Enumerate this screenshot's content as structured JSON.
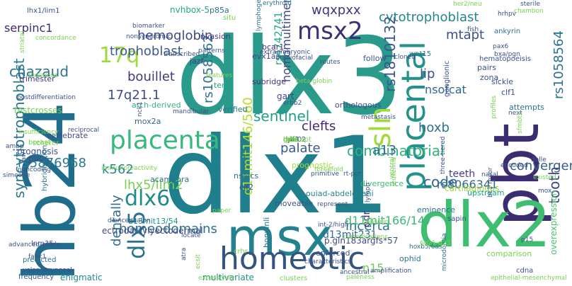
{
  "words": [
    {
      "text": "dlx3",
      "color": "#2a9a8a"
    },
    {
      "text": "dlx1",
      "color": "#1f7f8c"
    },
    {
      "text": "hb24",
      "color": "#1f6c8d"
    },
    {
      "text": "pbt",
      "color": "#3c2d70"
    },
    {
      "text": "dlx2",
      "color": "#3fbd70"
    },
    {
      "text": "msx",
      "color": "#23828d"
    },
    {
      "text": "homeotic",
      "color": "#34537f"
    },
    {
      "text": "placenta",
      "color": "#37b87c"
    },
    {
      "text": "placental",
      "color": "#23928a"
    },
    {
      "text": "msx2",
      "color": "#3a3276"
    },
    {
      "text": "dlx6",
      "color": "#1f8c89"
    },
    {
      "text": "dlx5",
      "color": "#2c728e"
    },
    {
      "text": "17q",
      "color": "#9ed93a"
    },
    {
      "text": "sln",
      "color": "#9fda3a"
    },
    {
      "text": "hemoglobin",
      "color": "#3e4a89"
    },
    {
      "text": "trophoblast",
      "color": "#375a8c"
    },
    {
      "text": "cytotrophoblast",
      "color": "#23888e"
    },
    {
      "text": "wqxpxx",
      "color": "#45347c"
    },
    {
      "text": "serpinc1",
      "color": "#3e2a6f"
    },
    {
      "text": "rs1810132",
      "color": "#3a568b"
    },
    {
      "text": "rs1058564",
      "color": "#2b6f8e"
    },
    {
      "text": "mtapt",
      "color": "#3c4f8a"
    },
    {
      "text": "lip",
      "color": "#3c4f8a"
    },
    {
      "text": "nsofcat",
      "color": "#2a6b8e"
    },
    {
      "text": "chazaud",
      "color": "#2c738e"
    },
    {
      "text": "bouillet",
      "color": "#3f3a7a"
    },
    {
      "text": "17q21.1",
      "color": "#3e4d8a"
    },
    {
      "text": "syncytiotrophoblast",
      "color": "#2a788e"
    },
    {
      "text": "rs5876968",
      "color": "#2a788e"
    },
    {
      "text": "k562",
      "color": "#25848e"
    },
    {
      "text": "lhx5/lim2",
      "color": "#7ad151"
    },
    {
      "text": "dentally",
      "color": "#2f6b8e"
    },
    {
      "text": "homeodomains",
      "color": "#2c6f8e"
    },
    {
      "text": "sentinel",
      "color": "#1fa187"
    },
    {
      "text": "clefts",
      "color": "#482475"
    },
    {
      "text": "palate",
      "color": "#375b8d"
    },
    {
      "text": "combinatorial",
      "color": "#2fb47c"
    },
    {
      "text": "a13",
      "color": "#2f6b8e"
    },
    {
      "text": "hoxb",
      "color": "#2c718e"
    },
    {
      "text": "code",
      "color": "#31688e"
    },
    {
      "text": "tooth",
      "color": "#404588"
    },
    {
      "text": "convergently",
      "color": "#355e8d"
    },
    {
      "text": "incerta",
      "color": "#2d718e"
    },
    {
      "text": "rs8066341",
      "color": "#31678e"
    },
    {
      "text": "teeth",
      "color": "#424086"
    },
    {
      "text": "odr",
      "color": "#472c7a"
    },
    {
      "text": "n15",
      "color": "#6ccd5a"
    },
    {
      "text": "d11mit146/560",
      "color": "#b2dd2d"
    },
    {
      "text": "d11mit166/147",
      "color": "#38b977"
    },
    {
      "text": "d13mit231",
      "color": "#2f6c8e"
    },
    {
      "text": "rs1058562",
      "color": "#2e6e8e"
    },
    {
      "text": "homomultimers",
      "color": "#3e4989"
    },
    {
      "text": "rs4742741",
      "color": "#22a785"
    },
    {
      "text": "nvhbox-5",
      "color": "#22a785"
    },
    {
      "text": "p85a",
      "color": "#2e6f8e"
    },
    {
      "text": "enigmatic",
      "color": "#23888e"
    },
    {
      "text": "multivariate",
      "color": "#21918c"
    },
    {
      "text": "ectrodactylyectodermal",
      "color": "#3e4a89"
    },
    {
      "text": "p.gln183argfs*57",
      "color": "#3e4a89"
    },
    {
      "text": "overexpression",
      "color": "#4ac16d"
    },
    {
      "text": "cartilaginous",
      "color": "#9fda3a"
    },
    {
      "text": "upstream",
      "color": "#1fa187"
    },
    {
      "text": "acampora",
      "color": "#2d708e"
    },
    {
      "text": "d13mit13/54",
      "color": "#1f958b"
    },
    {
      "text": "ouiad-abdelghani",
      "color": "#25848e"
    },
    {
      "text": "prognostic",
      "color": "#a5db36"
    },
    {
      "text": "divergence",
      "color": "#3fbc73"
    },
    {
      "text": "orthologous",
      "color": "#3d4e8a"
    },
    {
      "text": "gart",
      "color": "#404688"
    },
    {
      "text": "subridge",
      "color": "#46327e"
    },
    {
      "text": "bcar1",
      "color": "#46327e"
    },
    {
      "text": "evx1as",
      "color": "#3f4788"
    },
    {
      "text": "jazf",
      "color": "#443a83"
    },
    {
      "text": "invasion",
      "color": "#443983"
    },
    {
      "text": "trimester",
      "color": "#443983"
    },
    {
      "text": "testcrosses",
      "color": "#7ad151"
    },
    {
      "text": "verified",
      "color": "#2a788e"
    },
    {
      "text": "term",
      "color": "#21a585"
    },
    {
      "text": "mox2a",
      "color": "#31688e"
    },
    {
      "text": "arch-derived",
      "color": "#2fb47c"
    },
    {
      "text": "vertebrate",
      "color": "#3e4a89"
    },
    {
      "text": "breast",
      "color": "#7ad151"
    },
    {
      "text": "prognosis",
      "color": "#3b528b"
    },
    {
      "text": "poor",
      "color": "#3b528b"
    },
    {
      "text": "eminence",
      "color": "#2c728e"
    },
    {
      "text": "clf2",
      "color": "#3b528b"
    },
    {
      "text": "nsofcs",
      "color": "#2c728e"
    },
    {
      "text": "moveable",
      "color": "#3b528b"
    },
    {
      "text": "enforced",
      "color": "#3b528b"
    },
    {
      "text": "ophid",
      "color": "#2c728e"
    },
    {
      "text": "comparison",
      "color": "#7ad151"
    },
    {
      "text": "sickle",
      "color": "#3b528b"
    },
    {
      "text": "attempts",
      "color": "#2c728e"
    },
    {
      "text": "clf1",
      "color": "#3b528b"
    },
    {
      "text": "zona",
      "color": "#3b528b"
    },
    {
      "text": "pairs",
      "color": "#3b528b"
    },
    {
      "text": "wnt15",
      "color": "#2c728e"
    },
    {
      "text": "hematopoeisis",
      "color": "#3b528b"
    },
    {
      "text": "ganglionic",
      "color": "#3b528b"
    },
    {
      "text": "ankyrin",
      "color": "#2c728e"
    },
    {
      "text": "follow",
      "color": "#3b528b"
    },
    {
      "text": "situ",
      "color": "#7ad151"
    },
    {
      "text": "scherer",
      "color": "#7ad151"
    },
    {
      "text": "lhx1/lim1",
      "color": "#3b528b"
    },
    {
      "text": "clusters",
      "color": "#7ad151"
    },
    {
      "text": "sapin",
      "color": "#3b528b"
    },
    {
      "text": "bonvinli",
      "color": "#2c728e"
    },
    {
      "text": "crhr",
      "color": "#7ad151"
    },
    {
      "text": "cdna",
      "color": "#3b528b"
    },
    {
      "text": "p15",
      "color": "#3b528b"
    },
    {
      "text": "nasal",
      "color": "#3b528b"
    },
    {
      "text": "hybridization",
      "color": "#2c728e"
    },
    {
      "text": "predicted",
      "color": "#2c728e"
    },
    {
      "text": "lnm35",
      "color": "#3b528b"
    },
    {
      "text": "frequency",
      "color": "#3b528b"
    },
    {
      "text": "velopharyngeal",
      "color": "#3b528b"
    },
    {
      "text": "fank1",
      "color": "#3b528b"
    },
    {
      "text": "ecsit",
      "color": "#7ad151"
    },
    {
      "text": "extensively",
      "color": "#7ad151"
    },
    {
      "text": "ancestral",
      "color": "#3b528b"
    },
    {
      "text": "paleness",
      "color": "#7ad151"
    },
    {
      "text": "epithelial-mesenchymal",
      "color": "#7ad151"
    },
    {
      "text": "amplification",
      "color": "#3b528b"
    },
    {
      "text": "characteristics",
      "color": "#3b528b"
    },
    {
      "text": "microdontia",
      "color": "#2c728e"
    },
    {
      "text": "hoxb5/6as",
      "color": "#2c728e"
    },
    {
      "text": "classifications",
      "color": "#7ad151"
    },
    {
      "text": "int-2/high",
      "color": "#3b528b"
    },
    {
      "text": "represent",
      "color": "#3b528b"
    },
    {
      "text": "capsulin",
      "color": "#7ad151"
    },
    {
      "text": "lymph",
      "color": "#3b528b"
    },
    {
      "text": "metastasis",
      "color": "#3b528b"
    },
    {
      "text": "threefold",
      "color": "#7ad151"
    },
    {
      "text": "primitive",
      "color": "#3b528b"
    },
    {
      "text": "rt-pcr",
      "color": "#3b528b"
    },
    {
      "text": "cloned",
      "color": "#3b528b"
    },
    {
      "text": "features",
      "color": "#7ad151"
    },
    {
      "text": "transcribed",
      "color": "#3b528b"
    },
    {
      "text": "patterns",
      "color": "#3b528b"
    },
    {
      "text": "nonsyndromic",
      "color": "#3b528b"
    },
    {
      "text": "biomarker",
      "color": "#3b528b"
    },
    {
      "text": "erythroid",
      "color": "#2c728e"
    },
    {
      "text": "lymphogenous",
      "color": "#2c728e"
    },
    {
      "text": "extraembryonic",
      "color": "#3b528b"
    },
    {
      "text": "craniofacial",
      "color": "#3b528b"
    },
    {
      "text": "routes",
      "color": "#3b528b"
    },
    {
      "text": "erbb2",
      "color": "#3b528b"
    },
    {
      "text": "mandibular",
      "color": "#3b528b"
    },
    {
      "text": "beta-globin",
      "color": "#7ad151"
    },
    {
      "text": "sterile",
      "color": "#3b528b"
    },
    {
      "text": "chambon",
      "color": "#7ad151"
    },
    {
      "text": "hrhpv",
      "color": "#3b528b"
    },
    {
      "text": "fish",
      "color": "#3b528b"
    },
    {
      "text": "bxa/pgn",
      "color": "#3b528b"
    },
    {
      "text": "pax6",
      "color": "#3b528b"
    },
    {
      "text": "concordance",
      "color": "#7ad151"
    },
    {
      "text": "postdifferentiation",
      "color": "#3b528b"
    },
    {
      "text": "insufficiency",
      "color": "#7ad151"
    },
    {
      "text": "ambp",
      "color": "#3b528b"
    },
    {
      "text": "reciprocal",
      "color": "#3b528b"
    },
    {
      "text": "noncoding",
      "color": "#3b528b"
    },
    {
      "text": "simeone",
      "color": "#3b528b"
    },
    {
      "text": "jaw",
      "color": "#3b528b"
    },
    {
      "text": "advanced-grade",
      "color": "#3b528b"
    },
    {
      "text": "diencephalon",
      "color": "#3b528b"
    },
    {
      "text": "locate",
      "color": "#3b528b"
    },
    {
      "text": "atra",
      "color": "#3b528b"
    },
    {
      "text": "6q21-q23",
      "color": "#7ad151"
    },
    {
      "text": "encoded",
      "color": "#3b528b"
    },
    {
      "text": "existed",
      "color": "#7ad151"
    },
    {
      "text": "bc1 myor",
      "color": "#3b528b"
    },
    {
      "text": "mox",
      "color": "#3b528b"
    },
    {
      "text": "dolle",
      "color": "#3b528b"
    },
    {
      "text": "profiles",
      "color": "#7ad151"
    },
    {
      "text": "next",
      "color": "#3b528b"
    },
    {
      "text": "paper",
      "color": "#7ad151"
    },
    {
      "text": "ventral",
      "color": "#7ad151"
    },
    {
      "text": "leukemia",
      "color": "#7ad151"
    },
    {
      "text": "sfmbt2",
      "color": "#7ad151"
    },
    {
      "text": "thalamus",
      "color": "#7ad151"
    },
    {
      "text": "immunoreactivity",
      "color": "#7ad151"
    },
    {
      "text": "nck1",
      "color": "#3b528b"
    },
    {
      "text": "three-tiered",
      "color": "#3b528b"
    },
    {
      "text": "striatal",
      "color": "#7ad151"
    },
    {
      "text": "her2/neu",
      "color": "#7ad151"
    },
    {
      "text": "mb-02",
      "color": "#3b528b"
    },
    {
      "text": "lsils",
      "color": "#7ad151"
    },
    {
      "text": "rgb1",
      "color": "#7ad151"
    },
    {
      "text": "dpf3",
      "color": "#3b528b"
    },
    {
      "text": "gets",
      "color": "#7ad151"
    },
    {
      "text": "concept",
      "color": "#7ad151"
    }
  ]
}
